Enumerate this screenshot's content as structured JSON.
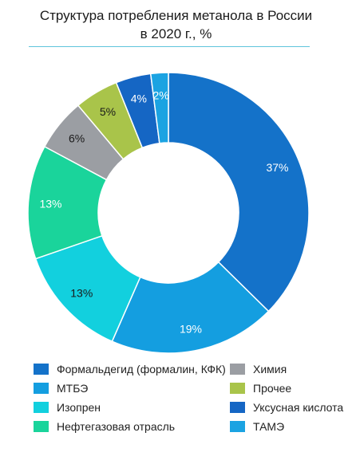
{
  "chart_data": {
    "type": "pie",
    "title": "Структура потребления метанола в России в 2020 г., %",
    "title_lines": [
      "Структура потребления метанола в России",
      "в 2020 г., %"
    ],
    "categories": [
      "Формальдегид (формалин, КФК)",
      "МТБЭ",
      "Изопрен",
      "Нефтегазовая отрасль",
      "Химия",
      "Прочее",
      "Уксусная кислота",
      "ТАМЭ"
    ],
    "values": [
      37,
      19,
      13,
      13,
      6,
      5,
      4,
      2
    ],
    "labels": [
      "37%",
      "19%",
      "13%",
      "13%",
      "6%",
      "5%",
      "4%",
      "2%"
    ],
    "colors": [
      "#1472c9",
      "#149ee0",
      "#12d0de",
      "#1ad49b",
      "#9b9ea3",
      "#a9c44a",
      "#1566c4",
      "#1ba3e2"
    ],
    "label_colors": [
      "#ffffff",
      "#ffffff",
      "#1a1a1a",
      "#ffffff",
      "#1a1a1a",
      "#1a1a1a",
      "#ffffff",
      "#ffffff"
    ],
    "donut": true,
    "legend_position": "bottom",
    "legend_columns": 2
  }
}
